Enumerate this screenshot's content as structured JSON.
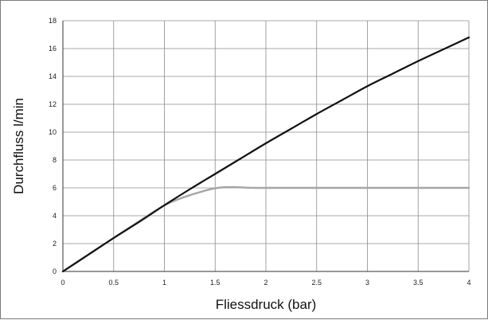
{
  "chart_data": {
    "type": "line",
    "xlabel": "Fliessdruck (bar)",
    "ylabel": "Durchfluss l/min",
    "xlim": [
      0,
      4
    ],
    "ylim": [
      0,
      18
    ],
    "xticks": [
      "0",
      "0.5",
      "1",
      "1.5",
      "2",
      "2.5",
      "3",
      "3.5",
      "4"
    ],
    "yticks": [
      "0",
      "2",
      "4",
      "6",
      "8",
      "10",
      "12",
      "14",
      "16",
      "18"
    ],
    "grid": true,
    "series": [
      {
        "color": "#a6a6a6",
        "x": [
          0,
          0.25,
          0.5,
          0.75,
          1.0,
          1.2,
          1.4,
          1.5,
          1.6,
          1.7,
          1.8,
          1.9,
          2.0,
          2.5,
          3.0,
          3.5,
          4.0
        ],
        "y": [
          0,
          1.2,
          2.4,
          3.6,
          4.75,
          5.35,
          5.8,
          5.97,
          6.05,
          6.05,
          6.02,
          6.0,
          6.0,
          6.0,
          6.0,
          6.0,
          6.0
        ]
      },
      {
        "color": "#111111",
        "x": [
          0,
          0.25,
          0.5,
          0.75,
          1.0,
          1.25,
          1.5,
          1.75,
          2.0,
          2.25,
          2.5,
          2.75,
          3.0,
          3.25,
          3.5,
          3.75,
          4.0
        ],
        "y": [
          0,
          1.2,
          2.4,
          3.55,
          4.75,
          5.9,
          7.0,
          8.1,
          9.2,
          10.25,
          11.3,
          12.3,
          13.3,
          14.2,
          15.1,
          15.95,
          16.8
        ]
      }
    ]
  }
}
